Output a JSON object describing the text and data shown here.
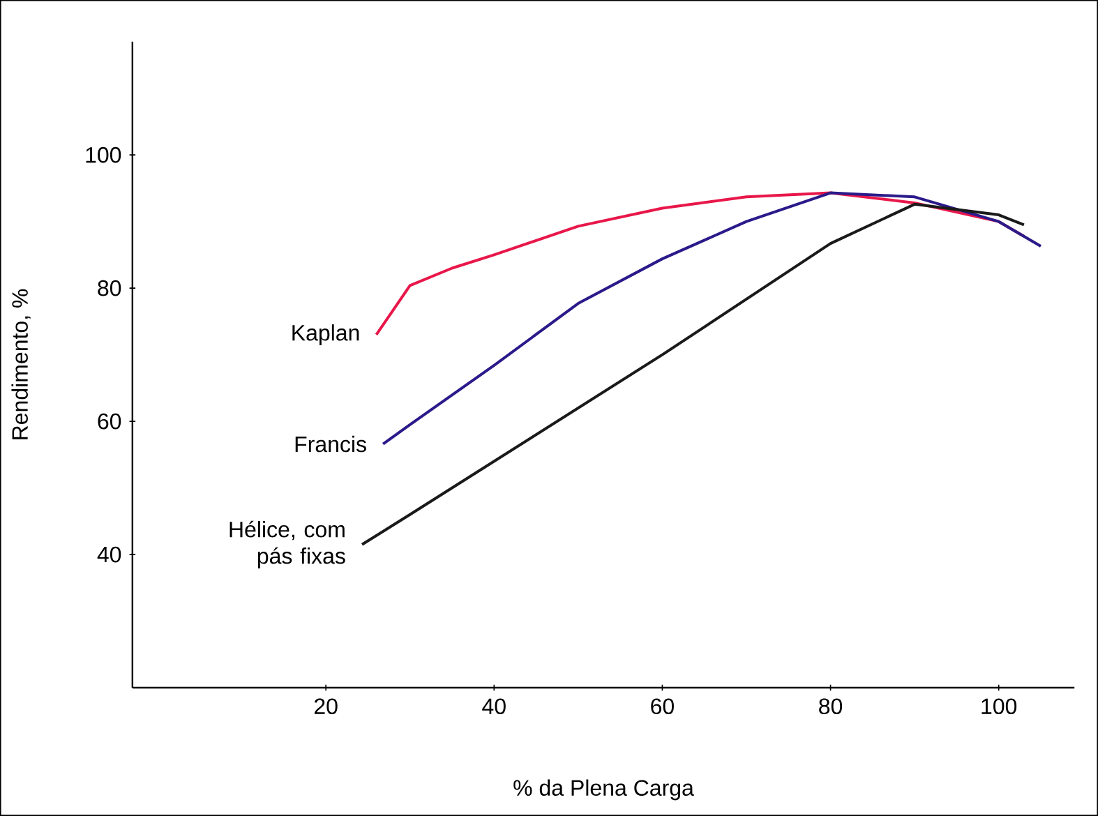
{
  "chart_data": {
    "type": "line",
    "xlabel": "% da Plena Carga",
    "ylabel": "Rendimento, %",
    "xlim": [
      -3,
      109
    ],
    "ylim": [
      20,
      117
    ],
    "xticks": [
      20,
      40,
      60,
      80,
      100
    ],
    "yticks": [
      40,
      60,
      80,
      100
    ],
    "series": [
      {
        "name": "Kaplan",
        "color": "#e8174a",
        "x": [
          26,
          30,
          35,
          40,
          50,
          60,
          70,
          80,
          90,
          100,
          103
        ],
        "values": [
          73,
          80.4,
          83,
          85,
          89.3,
          92,
          93.7,
          94.3,
          92.8,
          90,
          87.8
        ]
      },
      {
        "name": "Francis",
        "color": "#2a1a8a",
        "x": [
          26.8,
          30,
          40,
          50,
          60,
          70,
          80,
          90,
          100,
          105
        ],
        "values": [
          56.6,
          59.5,
          68.4,
          77.7,
          84.4,
          90,
          94.3,
          93.7,
          90,
          86.3
        ]
      },
      {
        "name": "Hélice, com pás fixas",
        "color": "#1a1a1a",
        "x": [
          24.3,
          30,
          40,
          60,
          80,
          90,
          100,
          103
        ],
        "values": [
          41.5,
          46,
          54,
          70,
          86.7,
          92.6,
          91,
          89.5
        ]
      }
    ]
  }
}
